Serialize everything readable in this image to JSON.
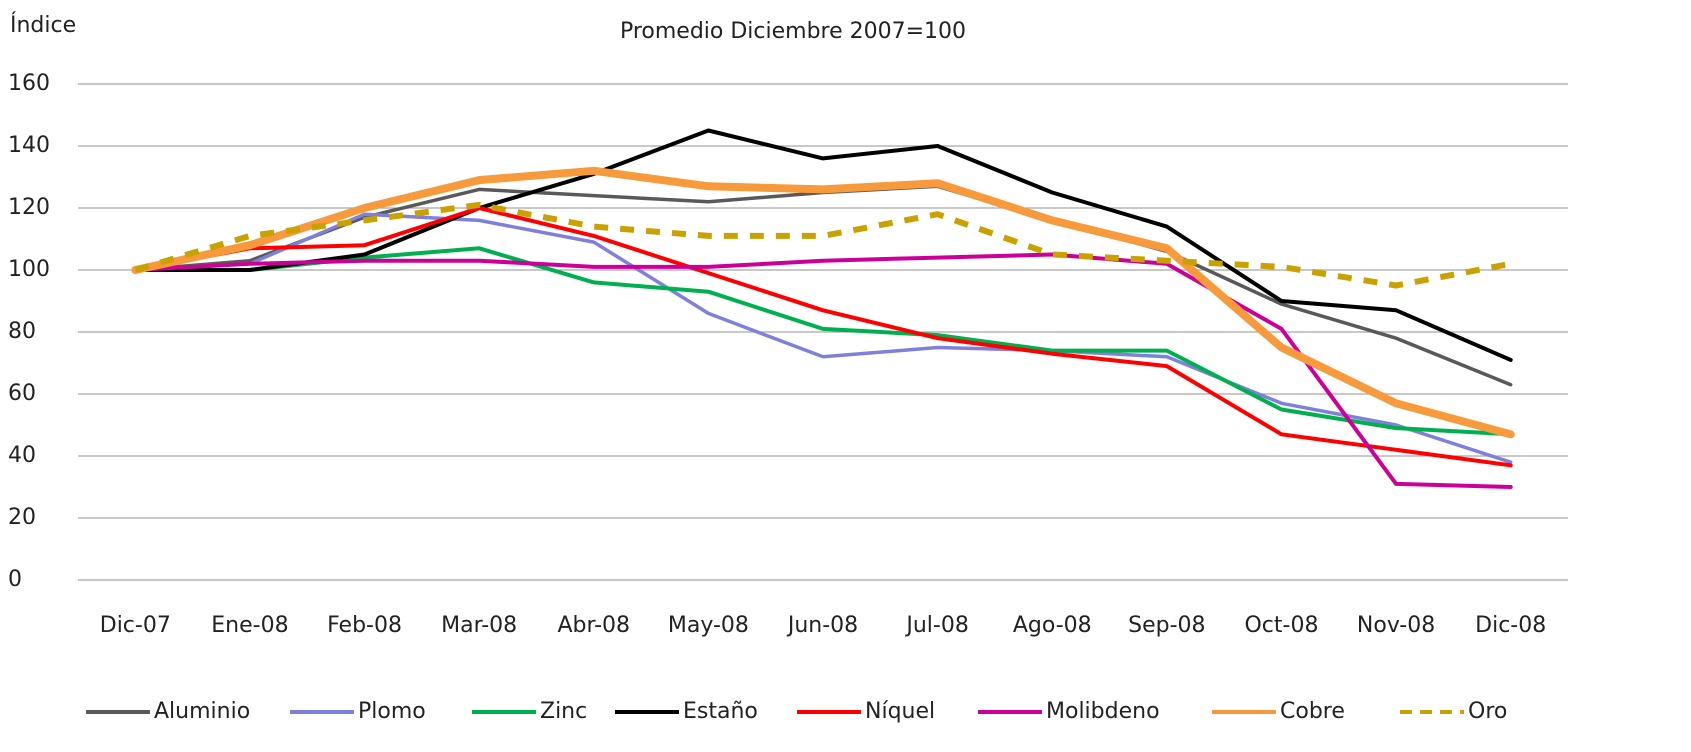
{
  "chart_data": {
    "type": "line",
    "title": "Promedio Diciembre 2007=100",
    "y_label": "Índice",
    "categories": [
      "Dic-07",
      "Ene-08",
      "Feb-08",
      "Mar-08",
      "Abr-08",
      "May-08",
      "Jun-08",
      "Jul-08",
      "Ago-08",
      "Sep-08",
      "Oct-08",
      "Nov-08",
      "Dic-08"
    ],
    "ylim": [
      0,
      160
    ],
    "yticks": [
      0,
      20,
      40,
      60,
      80,
      100,
      120,
      140,
      160
    ],
    "grid": true,
    "legend": "bottom",
    "series": [
      {
        "name": "Aluminio",
        "color": "#595959",
        "values": [
          100,
          103,
          117,
          126,
          124,
          122,
          125,
          127,
          116,
          106,
          89,
          78,
          63
        ]
      },
      {
        "name": "Plomo",
        "color": "#7f7fdc",
        "values": [
          100,
          102,
          118,
          116,
          109,
          86,
          72,
          75,
          74,
          72,
          57,
          50,
          38
        ]
      },
      {
        "name": "Zinc",
        "color": "#00b050",
        "values": [
          100,
          100,
          104,
          107,
          96,
          93,
          81,
          79,
          74,
          74,
          55,
          49,
          47
        ]
      },
      {
        "name": "Estaño",
        "color": "#000000",
        "values": [
          100,
          100,
          105,
          120,
          131,
          145,
          136,
          140,
          125,
          114,
          90,
          87,
          71
        ]
      },
      {
        "name": "Níquel",
        "color": "#ff0000",
        "values": [
          100,
          107,
          108,
          120,
          111,
          99,
          87,
          78,
          73,
          69,
          47,
          42,
          37
        ]
      },
      {
        "name": "Molibdeno",
        "color": "#cc0099",
        "values": [
          100,
          102,
          103,
          103,
          101,
          101,
          103,
          104,
          105,
          102,
          81,
          31,
          30
        ]
      },
      {
        "name": "Cobre",
        "color": "#f79a3c",
        "values": [
          100,
          108,
          120,
          129,
          132,
          127,
          126,
          128,
          116,
          107,
          75,
          57,
          47
        ]
      },
      {
        "name": "Oro",
        "color": "#c9a100",
        "dashed": true,
        "values": [
          100,
          111,
          116,
          121,
          114,
          111,
          111,
          118,
          105,
          103,
          101,
          95,
          102
        ]
      }
    ]
  }
}
